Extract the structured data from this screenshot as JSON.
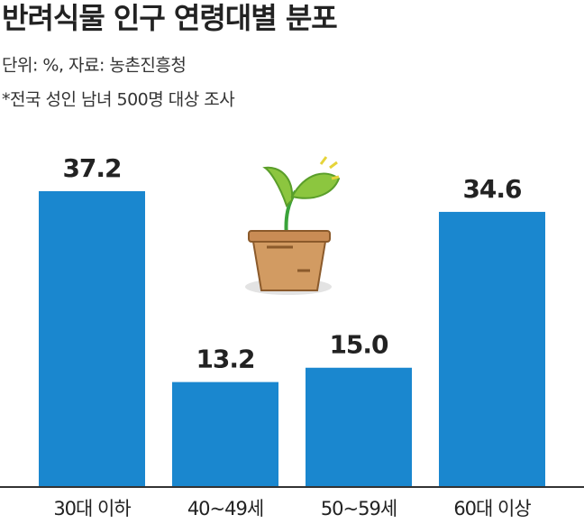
{
  "chart_data": {
    "type": "bar",
    "title": "반려식물 인구 연령대별 분포",
    "subtitle": "단위: %, 자료: 농촌진흥청",
    "note": "*전국 성인 남녀 500명 대상 조사",
    "categories": [
      "30대 이하",
      "40~49세",
      "50~59세",
      "60대 이상"
    ],
    "values": [
      37.2,
      13.2,
      15.0,
      34.6
    ],
    "value_labels": [
      "37.2",
      "13.2",
      "15.0",
      "34.6"
    ],
    "color": "#1a87cf"
  }
}
